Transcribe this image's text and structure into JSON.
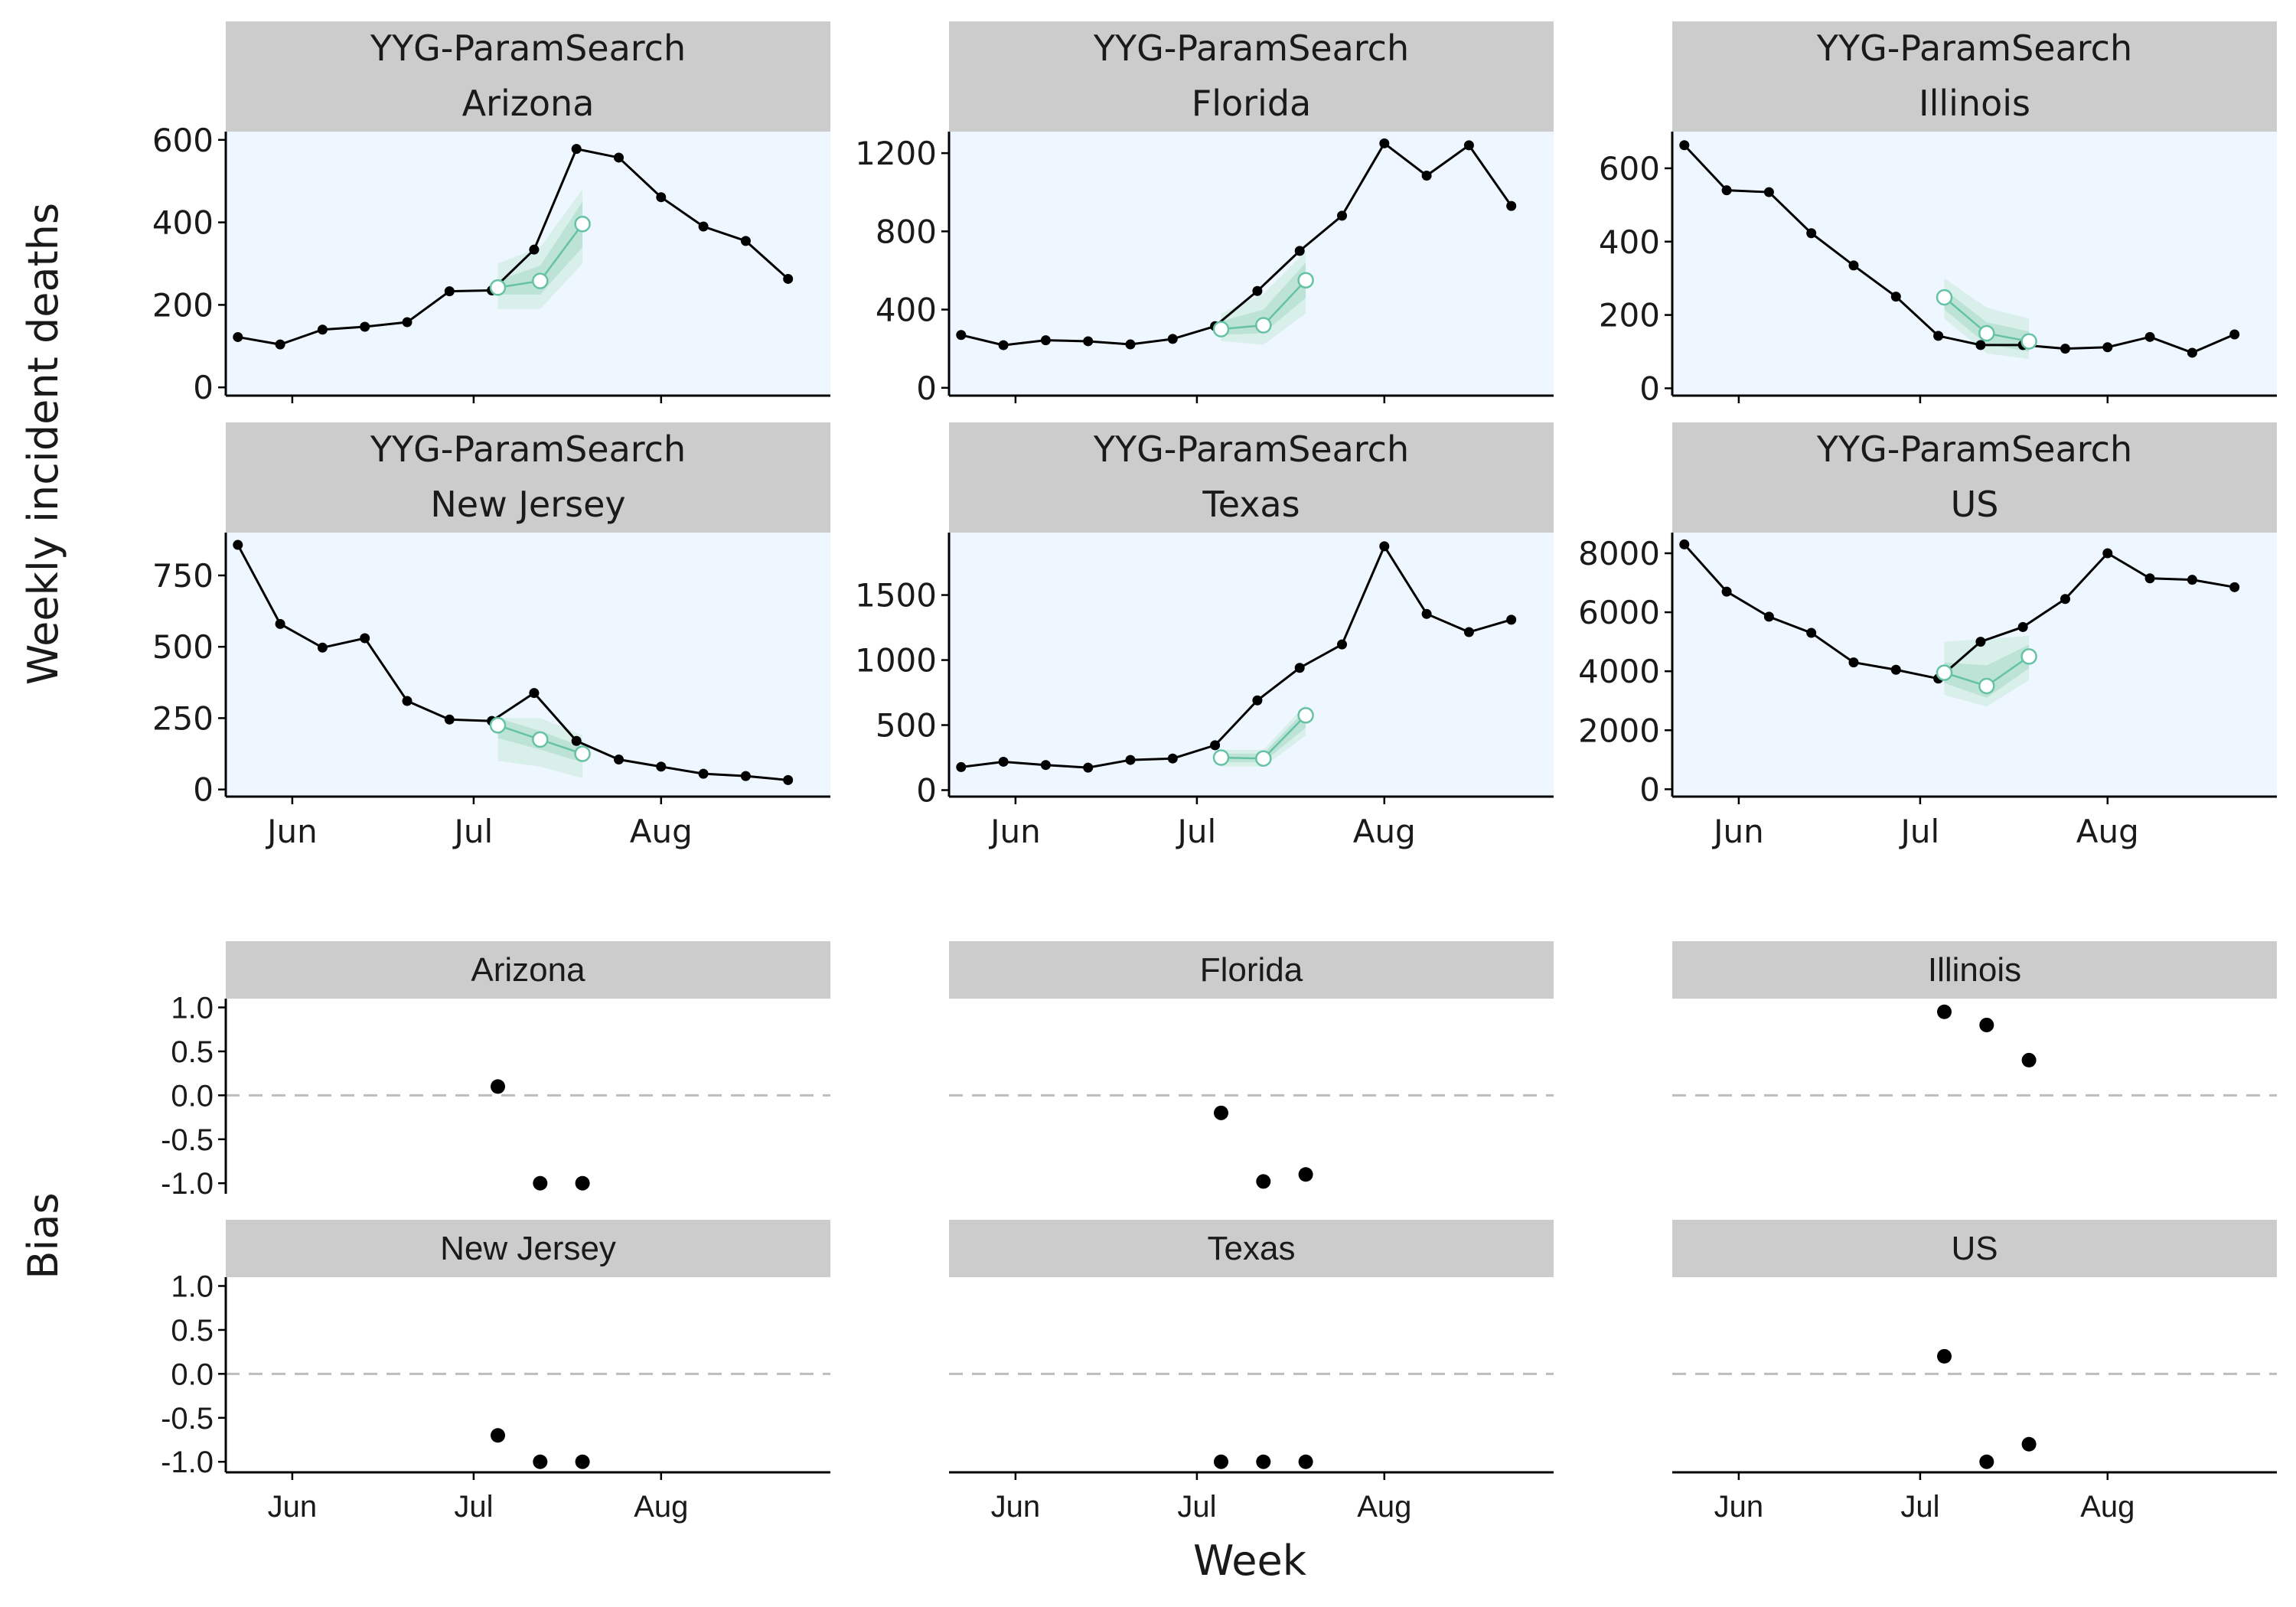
{
  "chart_data": {
    "type": "line",
    "weekly_panels": {
      "ylabel": "Weekly incident deaths",
      "model": "YYG-ParamSearch",
      "date_range": [
        "2020-05-21",
        "2020-08-29"
      ],
      "x_ticks": [
        {
          "date": "2020-06-01",
          "label": "Jun"
        },
        {
          "date": "2020-07-01",
          "label": "Jul"
        },
        {
          "date": "2020-08-01",
          "label": "Aug"
        }
      ],
      "facets": [
        {
          "model": "YYG-ParamSearch",
          "location": "Arizona",
          "ylim": [
            -20,
            620
          ],
          "yticks": [
            0,
            200,
            400,
            600
          ],
          "observed": {
            "x": [
              "2020-05-23",
              "2020-05-30",
              "2020-06-06",
              "2020-06-13",
              "2020-06-20",
              "2020-06-27",
              "2020-07-04",
              "2020-07-11",
              "2020-07-18",
              "2020-07-25",
              "2020-08-01",
              "2020-08-08",
              "2020-08-15",
              "2020-08-22"
            ],
            "y": [
              122,
              104,
              140,
              147,
              158,
              233,
              235,
              334,
              578,
              557,
              461,
              390,
              355,
              263
            ]
          },
          "forecast": {
            "x": [
              "2020-07-05",
              "2020-07-12",
              "2020-07-19"
            ],
            "y": [
              242,
              258,
              396
            ],
            "lower_50": [
              225,
              225,
              340
            ],
            "upper_50": [
              260,
              295,
              450
            ],
            "lower_95": [
              190,
              190,
              300
            ],
            "upper_95": [
              300,
              340,
              480
            ]
          }
        },
        {
          "model": "YYG-ParamSearch",
          "location": "Florida",
          "ylim": [
            -40,
            1310
          ],
          "yticks": [
            0,
            400,
            800,
            1200
          ],
          "observed": {
            "x": [
              "2020-05-23",
              "2020-05-30",
              "2020-06-06",
              "2020-06-13",
              "2020-06-20",
              "2020-06-27",
              "2020-07-04",
              "2020-07-11",
              "2020-07-18",
              "2020-07-25",
              "2020-08-01",
              "2020-08-08",
              "2020-08-15",
              "2020-08-22"
            ],
            "y": [
              270,
              218,
              243,
              238,
              222,
              250,
              315,
              495,
              700,
              880,
              1250,
              1085,
              1240,
              930
            ]
          },
          "forecast": {
            "x": [
              "2020-07-05",
              "2020-07-12",
              "2020-07-19"
            ],
            "y": [
              300,
              320,
              550
            ],
            "lower_50": [
              270,
              280,
              460
            ],
            "upper_50": [
              340,
              400,
              640
            ],
            "lower_95": [
              240,
              220,
              380
            ],
            "upper_95": [
              380,
              480,
              700
            ]
          }
        },
        {
          "model": "YYG-ParamSearch",
          "location": "Illinois",
          "ylim": [
            -20,
            700
          ],
          "yticks": [
            0,
            200,
            400,
            600
          ],
          "observed": {
            "x": [
              "2020-05-23",
              "2020-05-30",
              "2020-06-06",
              "2020-06-13",
              "2020-06-20",
              "2020-06-27",
              "2020-07-04",
              "2020-07-11",
              "2020-07-18",
              "2020-07-25",
              "2020-08-01",
              "2020-08-08",
              "2020-08-15",
              "2020-08-22"
            ],
            "y": [
              663,
              540,
              535,
              423,
              335,
              250,
              143,
              118,
              118,
              108,
              112,
              140,
              97,
              147
            ]
          },
          "forecast": {
            "x": [
              "2020-07-05",
              "2020-07-12",
              "2020-07-19"
            ],
            "y": [
              248,
              150,
              128
            ],
            "lower_50": [
              215,
              120,
              100
            ],
            "upper_50": [
              270,
              180,
              155
            ],
            "lower_95": [
              190,
              95,
              80
            ],
            "upper_95": [
              300,
              220,
              190
            ]
          }
        },
        {
          "model": "YYG-ParamSearch",
          "location": "New Jersey",
          "ylim": [
            -25,
            900
          ],
          "yticks": [
            0,
            250,
            500,
            750
          ],
          "observed": {
            "x": [
              "2020-05-23",
              "2020-05-30",
              "2020-06-06",
              "2020-06-13",
              "2020-06-20",
              "2020-06-27",
              "2020-07-04",
              "2020-07-11",
              "2020-07-18",
              "2020-07-25",
              "2020-08-01",
              "2020-08-08",
              "2020-08-15",
              "2020-08-22"
            ],
            "y": [
              857,
              580,
              497,
              530,
              310,
              245,
              240,
              338,
              170,
              105,
              80,
              55,
              47,
              33
            ]
          },
          "forecast": {
            "x": [
              "2020-07-05",
              "2020-07-12",
              "2020-07-19"
            ],
            "y": [
              225,
              175,
              125
            ],
            "lower_50": [
              180,
              140,
              95
            ],
            "upper_50": [
              250,
              205,
              150
            ],
            "lower_95": [
              100,
              80,
              40
            ],
            "upper_95": [
              250,
              250,
              190
            ]
          }
        },
        {
          "model": "YYG-ParamSearch",
          "location": "Texas",
          "ylim": [
            -50,
            1980
          ],
          "yticks": [
            0,
            500,
            1000,
            1500
          ],
          "observed": {
            "x": [
              "2020-05-23",
              "2020-05-30",
              "2020-06-06",
              "2020-06-13",
              "2020-06-20",
              "2020-06-27",
              "2020-07-04",
              "2020-07-11",
              "2020-07-18",
              "2020-07-25",
              "2020-08-01",
              "2020-08-08",
              "2020-08-15",
              "2020-08-22"
            ],
            "y": [
              177,
              218,
              193,
              173,
              232,
              243,
              345,
              690,
              940,
              1120,
              1875,
              1355,
              1215,
              1310
            ]
          },
          "forecast": {
            "x": [
              "2020-07-05",
              "2020-07-12",
              "2020-07-19"
            ],
            "y": [
              250,
              243,
              575
            ],
            "lower_50": [
              215,
              215,
              480
            ],
            "upper_50": [
              280,
              280,
              620
            ],
            "lower_95": [
              180,
              180,
              420
            ],
            "upper_95": [
              310,
              310,
              660
            ]
          }
        },
        {
          "model": "YYG-ParamSearch",
          "location": "US",
          "ylim": [
            -250,
            8700
          ],
          "yticks": [
            0,
            2000,
            4000,
            6000,
            8000
          ],
          "observed": {
            "x": [
              "2020-05-23",
              "2020-05-30",
              "2020-06-06",
              "2020-06-13",
              "2020-06-20",
              "2020-06-27",
              "2020-07-04",
              "2020-07-11",
              "2020-07-18",
              "2020-07-25",
              "2020-08-01",
              "2020-08-08",
              "2020-08-15",
              "2020-08-22"
            ],
            "y": [
              8300,
              6700,
              5850,
              5300,
              4300,
              4050,
              3750,
              5000,
              5500,
              6450,
              8000,
              7150,
              7100,
              6850
            ]
          },
          "forecast": {
            "x": [
              "2020-07-05",
              "2020-07-12",
              "2020-07-19"
            ],
            "y": [
              3950,
              3500,
              4500
            ],
            "lower_50": [
              3600,
              3100,
              4100
            ],
            "upper_50": [
              4300,
              4200,
              4900
            ],
            "lower_95": [
              3200,
              2800,
              3700
            ],
            "upper_95": [
              5000,
              5100,
              5200
            ]
          }
        }
      ]
    },
    "bias_panels": {
      "type": "scatter",
      "ylabel": "Bias",
      "xlabel": "Week",
      "ylim": [
        -1.12,
        1.1
      ],
      "yticks": [
        -1.0,
        -0.5,
        0.0,
        0.5,
        1.0
      ],
      "ytick_labels": [
        "-1.0",
        "-0.5",
        "0.0",
        "0.5",
        "1.0"
      ],
      "reference_line": 0,
      "facets": [
        {
          "location": "Arizona",
          "x": [
            "2020-07-05",
            "2020-07-12",
            "2020-07-19"
          ],
          "y": [
            0.1,
            -1.0,
            -1.0
          ]
        },
        {
          "location": "Florida",
          "x": [
            "2020-07-05",
            "2020-07-12",
            "2020-07-19"
          ],
          "y": [
            -0.2,
            -0.98,
            -0.9
          ]
        },
        {
          "location": "Illinois",
          "x": [
            "2020-07-05",
            "2020-07-12",
            "2020-07-19"
          ],
          "y": [
            0.95,
            0.8,
            0.4
          ]
        },
        {
          "location": "New Jersey",
          "x": [
            "2020-07-05",
            "2020-07-12",
            "2020-07-19"
          ],
          "y": [
            -0.7,
            -1.0,
            -1.0
          ]
        },
        {
          "location": "Texas",
          "x": [
            "2020-07-05",
            "2020-07-12",
            "2020-07-19"
          ],
          "y": [
            -1.0,
            -1.0,
            -1.0
          ]
        },
        {
          "location": "US",
          "x": [
            "2020-07-05",
            "2020-07-12",
            "2020-07-19"
          ],
          "y": [
            0.2,
            -1.0,
            -0.8
          ]
        }
      ]
    },
    "colors": {
      "panel_background": "#eef6ff",
      "strip_background": "#cccccc",
      "observed": "#000000",
      "forecast": "#66c2a5",
      "band_95": "#d5ede6",
      "band_50": "#b7e0d3",
      "zero_line": "#bdbdbd"
    }
  }
}
